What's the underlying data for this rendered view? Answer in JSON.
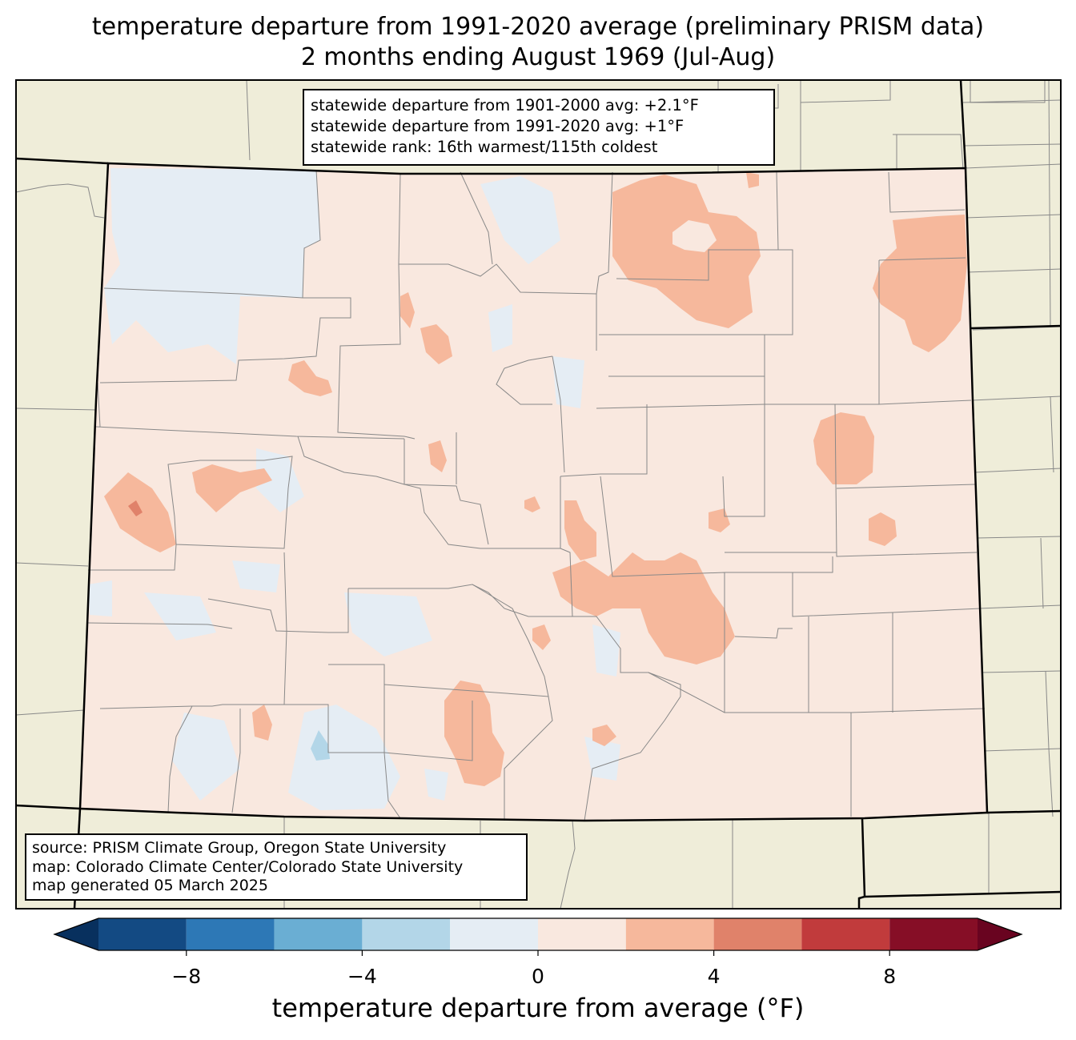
{
  "title": {
    "line1": "temperature departure from 1991-2020 average (preliminary PRISM data)",
    "line2": "2 months ending August 1969 (Jul-Aug)"
  },
  "stats_box": {
    "line1": "statewide departure from 1901-2000 avg: +2.1°F",
    "line2": "statewide departure from 1991-2020 avg: +1°F",
    "line3": "statewide rank: 16th warmest/115th coldest"
  },
  "source_box": {
    "line1": "source: PRISM Climate Group, Oregon State University",
    "line2": "map: Colorado Climate Center/Colorado State University",
    "line3": "map generated 05 March 2025"
  },
  "colorbar": {
    "label": "temperature departure from average (°F)",
    "ticks": [
      "−8",
      "−4",
      "0",
      "4",
      "8"
    ],
    "tick_values": [
      -8,
      -4,
      0,
      4,
      8
    ],
    "min": -10,
    "max": 10,
    "extend": "both",
    "bins": [
      {
        "from": -10,
        "to": -8,
        "color": "#134a83"
      },
      {
        "from": -8,
        "to": -6,
        "color": "#2d78b6"
      },
      {
        "from": -6,
        "to": -4,
        "color": "#6aaed3"
      },
      {
        "from": -4,
        "to": -2,
        "color": "#b3d6e8"
      },
      {
        "from": -2,
        "to": 0,
        "color": "#e5edf4"
      },
      {
        "from": 0,
        "to": 2,
        "color": "#f9e8df"
      },
      {
        "from": 2,
        "to": 4,
        "color": "#f6b89c"
      },
      {
        "from": 4,
        "to": 6,
        "color": "#e0826a"
      },
      {
        "from": 6,
        "to": 8,
        "color": "#c13b3c"
      },
      {
        "from": 8,
        "to": 10,
        "color": "#860e26"
      }
    ],
    "under_color": "#08305e",
    "over_color": "#690420"
  },
  "map_colors": {
    "background": "#efedd9",
    "state_fill": "#f9e8df",
    "cool_fill": "#e5edf4",
    "cold_fill": "#b3d6e8",
    "warm_fill": "#f6b89c",
    "hot_fill": "#e0826a"
  }
}
